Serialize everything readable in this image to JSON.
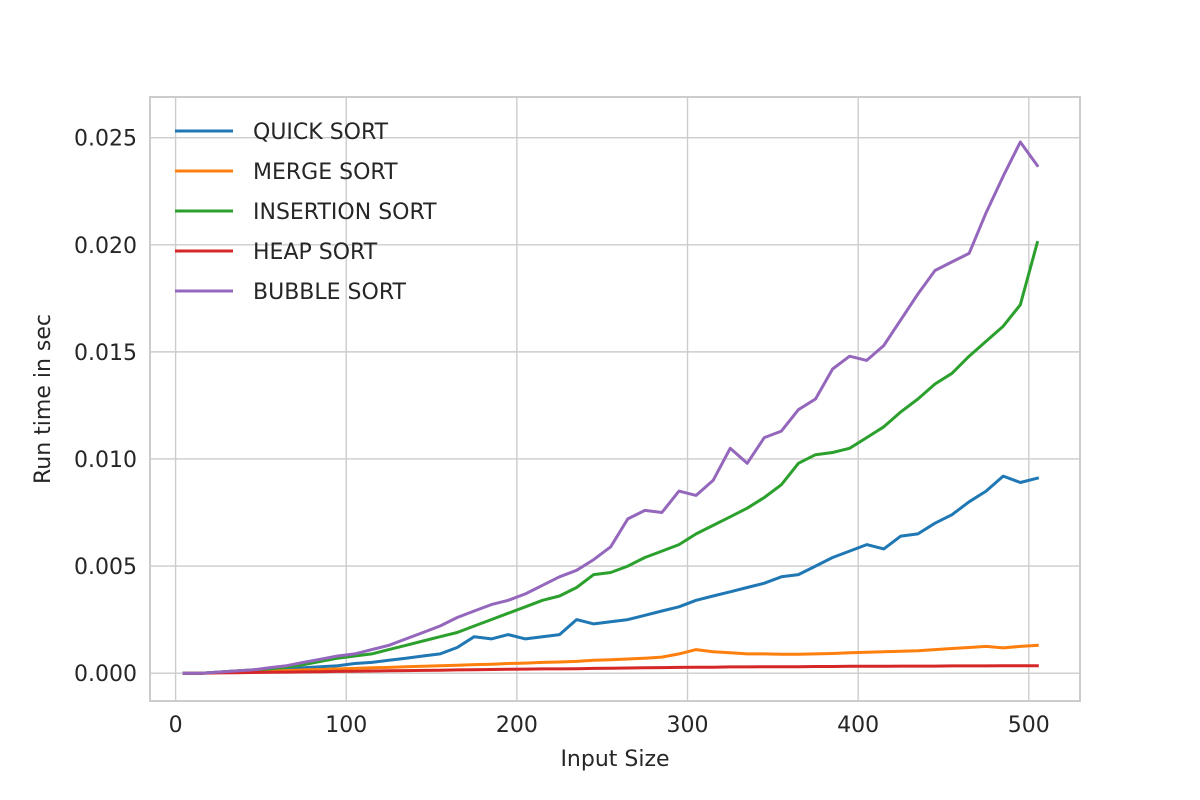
{
  "chart_data": {
    "type": "line",
    "title": "",
    "xlabel": "Input Size",
    "ylabel": "Run time in sec",
    "xlim": [
      -15,
      530
    ],
    "ylim": [
      -0.0013,
      0.0269
    ],
    "xticks": [
      0,
      100,
      200,
      300,
      400,
      500
    ],
    "xtick_labels": [
      "0",
      "100",
      "200",
      "300",
      "400",
      "500"
    ],
    "yticks": [
      0.0,
      0.005,
      0.01,
      0.015,
      0.02,
      0.025
    ],
    "ytick_labels": [
      "0.000",
      "0.005",
      "0.010",
      "0.015",
      "0.020",
      "0.025"
    ],
    "grid": true,
    "legend_position": "top-left",
    "x": [
      5,
      15,
      25,
      35,
      45,
      55,
      65,
      75,
      85,
      95,
      105,
      115,
      125,
      135,
      145,
      155,
      165,
      175,
      185,
      195,
      205,
      215,
      225,
      235,
      245,
      255,
      265,
      275,
      285,
      295,
      305,
      315,
      325,
      335,
      345,
      355,
      365,
      375,
      385,
      395,
      405,
      415,
      425,
      435,
      445,
      455,
      465,
      475,
      485,
      495,
      505
    ],
    "series": [
      {
        "name": "QUICK SORT",
        "color": "#1f77b4",
        "values": [
          0.0,
          0.0,
          5e-05,
          0.0001,
          0.00012,
          0.00015,
          0.0002,
          0.00025,
          0.0003,
          0.00035,
          0.00045,
          0.0005,
          0.0006,
          0.0007,
          0.0008,
          0.0009,
          0.0012,
          0.0017,
          0.0016,
          0.0018,
          0.0016,
          0.0017,
          0.0018,
          0.0025,
          0.0023,
          0.0024,
          0.0025,
          0.0027,
          0.0029,
          0.0031,
          0.0034,
          0.0036,
          0.0038,
          0.004,
          0.0042,
          0.0045,
          0.0046,
          0.005,
          0.0054,
          0.0057,
          0.006,
          0.0058,
          0.0064,
          0.0065,
          0.007,
          0.0074,
          0.008,
          0.0085,
          0.0092,
          0.0089,
          0.0091
        ]
      },
      {
        "name": "MERGE SORT",
        "color": "#ff7f0e",
        "values": [
          0.0,
          0.0,
          3e-05,
          5e-05,
          7e-05,
          0.0001,
          0.00012,
          0.00015,
          0.00017,
          0.0002,
          0.00022,
          0.00025,
          0.00027,
          0.0003,
          0.00032,
          0.00035,
          0.00037,
          0.0004,
          0.00042,
          0.00045,
          0.00047,
          0.0005,
          0.00052,
          0.00055,
          0.0006,
          0.00063,
          0.00066,
          0.0007,
          0.00075,
          0.0009,
          0.0011,
          0.001,
          0.00095,
          0.0009,
          0.0009,
          0.00088,
          0.00088,
          0.0009,
          0.00092,
          0.00095,
          0.00098,
          0.001,
          0.00102,
          0.00105,
          0.0011,
          0.00115,
          0.0012,
          0.00125,
          0.00118,
          0.00125,
          0.0013
        ]
      },
      {
        "name": "INSERTION SORT",
        "color": "#2ca02c",
        "values": [
          0.0,
          0.0,
          5e-05,
          0.0001,
          0.00015,
          0.0002,
          0.00028,
          0.0004,
          0.00055,
          0.0007,
          0.0008,
          0.0009,
          0.0011,
          0.0013,
          0.0015,
          0.0017,
          0.0019,
          0.0022,
          0.0025,
          0.0028,
          0.0031,
          0.0034,
          0.0036,
          0.004,
          0.0046,
          0.0047,
          0.005,
          0.0054,
          0.0057,
          0.006,
          0.0065,
          0.0069,
          0.0073,
          0.0077,
          0.0082,
          0.0088,
          0.0098,
          0.0102,
          0.0103,
          0.0105,
          0.011,
          0.0115,
          0.0122,
          0.0128,
          0.0135,
          0.014,
          0.0148,
          0.0155,
          0.0162,
          0.0172,
          0.0201
        ]
      },
      {
        "name": "HEAP SORT",
        "color": "#d62728",
        "values": [
          0.0,
          0.0,
          1e-05,
          2e-05,
          3e-05,
          4e-05,
          5e-05,
          6e-05,
          7e-05,
          8e-05,
          9e-05,
          0.0001,
          0.00011,
          0.00012,
          0.00013,
          0.00014,
          0.00015,
          0.00016,
          0.00017,
          0.00018,
          0.00019,
          0.0002,
          0.0002,
          0.00021,
          0.00022,
          0.00023,
          0.00024,
          0.00025,
          0.00026,
          0.00027,
          0.00028,
          0.00028,
          0.00029,
          0.00029,
          0.0003,
          0.0003,
          0.0003,
          0.00031,
          0.00031,
          0.00032,
          0.00032,
          0.00032,
          0.00033,
          0.00033,
          0.00033,
          0.00034,
          0.00034,
          0.00034,
          0.00035,
          0.00035,
          0.00035
        ]
      },
      {
        "name": "BUBBLE SORT",
        "color": "#9467bd",
        "values": [
          0.0,
          0.0,
          5e-05,
          0.0001,
          0.00015,
          0.00025,
          0.00035,
          0.0005,
          0.00065,
          0.0008,
          0.0009,
          0.0011,
          0.0013,
          0.0016,
          0.0019,
          0.0022,
          0.0026,
          0.0029,
          0.0032,
          0.0034,
          0.0037,
          0.0041,
          0.0045,
          0.0048,
          0.0053,
          0.0059,
          0.0072,
          0.0076,
          0.0075,
          0.0085,
          0.0083,
          0.009,
          0.0105,
          0.0098,
          0.011,
          0.0113,
          0.0123,
          0.0128,
          0.0142,
          0.0148,
          0.0146,
          0.0153,
          0.0165,
          0.0177,
          0.0188,
          0.0192,
          0.0196,
          0.0215,
          0.0232,
          0.0248,
          0.0237
        ]
      }
    ]
  }
}
